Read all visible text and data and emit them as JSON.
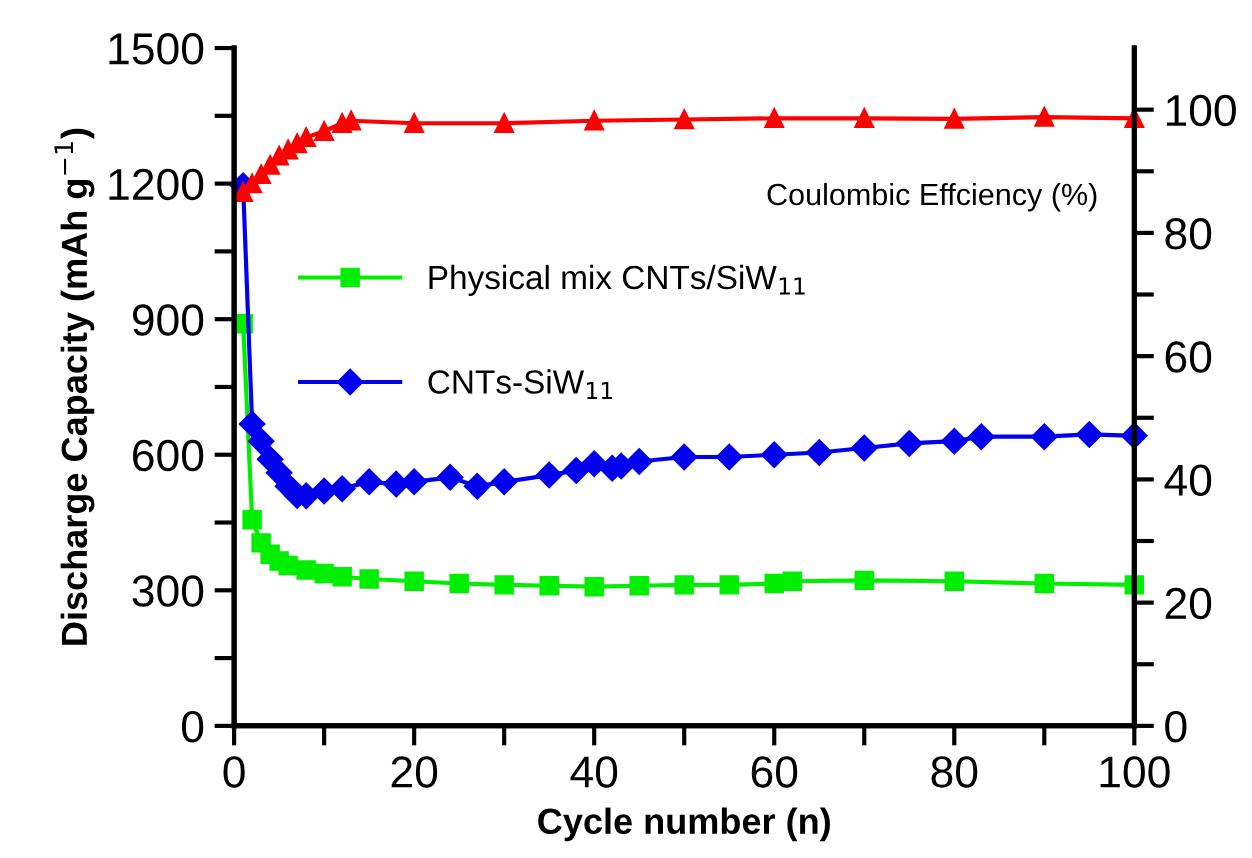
{
  "chart_data": {
    "type": "line",
    "xlabel": "Cycle number (n)",
    "ylabel": "Discharge Capacity (mAh g$^{−1}$)",
    "xlim": [
      0,
      100
    ],
    "xticks": [
      0,
      {
        "value": 10,
        "label": null
      },
      20,
      {
        "value": 30,
        "label": null
      },
      40,
      {
        "value": 50,
        "label": null
      },
      60,
      {
        "value": 70,
        "label": null
      },
      80,
      {
        "value": 90,
        "label": null
      },
      100
    ],
    "ylim": [
      0,
      1500
    ],
    "yticks": [
      0,
      {
        "value": 150,
        "label": null
      },
      300,
      {
        "value": 450,
        "label": null
      },
      600,
      {
        "value": 750,
        "label": null
      },
      900,
      {
        "value": 1050,
        "label": null
      },
      1200,
      {
        "value": 1350,
        "label": null
      },
      1500
    ],
    "y2lim": [
      0,
      110
    ],
    "y2ticks": [
      0,
      {
        "value": 10,
        "label": null
      },
      20,
      {
        "value": 30,
        "label": null
      },
      40,
      {
        "value": 50,
        "label": null
      },
      60,
      {
        "value": 70,
        "label": null
      },
      80,
      {
        "value": 90,
        "label": null
      },
      100
    ],
    "annotations": [
      "Coulombic Effciency (%)"
    ],
    "legend": "center left",
    "grid": false,
    "line_style": "solid",
    "series": [
      {
        "name": "Physical mix CNTs/SiW$_{11}$",
        "color": "#00ee00",
        "marker": "square",
        "x": [
          1,
          2,
          3,
          4,
          5,
          6,
          8,
          10,
          12,
          15,
          20,
          25,
          30,
          35,
          40,
          45,
          50,
          55,
          60,
          62,
          70,
          80,
          90,
          100
        ],
        "values": [
          890,
          456,
          405,
          380,
          365,
          355,
          345,
          337,
          330,
          325,
          320,
          315,
          312,
          310,
          308,
          310,
          312,
          312,
          315,
          320,
          322,
          320,
          315,
          312
        ]
      },
      {
        "name": "CNTs-SiW$_{11}$",
        "color": "#0000ee",
        "marker": "diamond",
        "x": [
          1,
          2,
          3,
          4,
          5,
          6,
          7,
          8,
          10,
          12,
          15,
          18,
          20,
          24,
          27,
          30,
          35,
          38,
          40,
          42,
          43,
          45,
          50,
          55,
          60,
          65,
          70,
          75,
          80,
          83,
          90,
          95,
          100
        ],
        "values": [
          1195,
          668,
          630,
          590,
          560,
          530,
          510,
          509,
          520,
          525,
          540,
          535,
          540,
          550,
          530,
          540,
          555,
          565,
          580,
          570,
          575,
          585,
          595,
          595,
          600,
          605,
          615,
          625,
          630,
          640,
          640,
          645,
          642
        ]
      },
      {
        "color": "#ff0000",
        "marker": "triangle",
        "axis": "y2",
        "x": [
          1,
          2,
          3,
          4,
          5,
          6,
          7,
          8,
          10,
          12,
          13,
          20,
          30,
          40,
          50,
          60,
          70,
          80,
          90,
          100
        ],
        "values": [
          86.6,
          88,
          89.5,
          91,
          92.5,
          93.5,
          94.5,
          95.5,
          96.5,
          97.8,
          98.2,
          97.8,
          97.8,
          98.2,
          98.4,
          98.6,
          98.6,
          98.5,
          98.8,
          98.6
        ]
      }
    ]
  }
}
